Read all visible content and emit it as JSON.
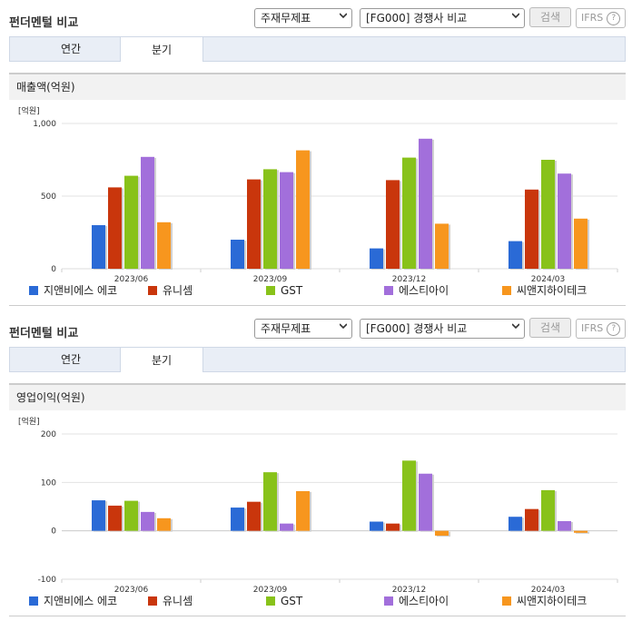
{
  "panels": [
    {
      "title": "펀더멘털 비교",
      "select1": "주재무제표",
      "select2": "[FG000] 경쟁사 비교",
      "search_label": "검색",
      "ifrs_label": "IFRS",
      "help_glyph": "?",
      "tabs": [
        {
          "label": "연간"
        },
        {
          "label": "분기"
        }
      ],
      "active_tab": 1,
      "chart_title": "매출액(억원)"
    },
    {
      "title": "펀더멘털 비교",
      "select1": "주재무제표",
      "select2": "[FG000] 경쟁사 비교",
      "search_label": "검색",
      "ifrs_label": "IFRS",
      "help_glyph": "?",
      "tabs": [
        {
          "label": "연간"
        },
        {
          "label": "분기"
        }
      ],
      "active_tab": 1,
      "chart_title": "영업이익(억원)"
    }
  ],
  "colors": [
    "#2a6ad6",
    "#c9360c",
    "#88c21a",
    "#a26fdb",
    "#f7961e"
  ],
  "chart_data": [
    {
      "type": "bar",
      "unit_label": "[억원]",
      "categories": [
        "2023/06",
        "2023/09",
        "2023/12",
        "2024/03"
      ],
      "series": [
        {
          "name": "지앤비에스 에코",
          "values": [
            300,
            200,
            140,
            190
          ]
        },
        {
          "name": "유니셈",
          "values": [
            560,
            615,
            610,
            545
          ]
        },
        {
          "name": "GST",
          "values": [
            640,
            685,
            765,
            750
          ]
        },
        {
          "name": "에스티아이",
          "values": [
            770,
            665,
            895,
            655
          ]
        },
        {
          "name": "씨앤지하이테크",
          "values": [
            320,
            815,
            310,
            345
          ]
        }
      ],
      "yticks": [
        "1,000",
        "500",
        "0"
      ],
      "ylim": [
        0,
        1000
      ],
      "grid": true,
      "legend": "bottom"
    },
    {
      "type": "bar",
      "unit_label": "[억원]",
      "categories": [
        "2023/06",
        "2023/09",
        "2023/12",
        "2024/03"
      ],
      "series": [
        {
          "name": "지앤비에스 에코",
          "values": [
            63,
            48,
            19,
            29
          ]
        },
        {
          "name": "유니셈",
          "values": [
            52,
            60,
            15,
            45
          ]
        },
        {
          "name": "GST",
          "values": [
            62,
            121,
            145,
            84
          ]
        },
        {
          "name": "에스티아이",
          "values": [
            39,
            15,
            118,
            20
          ]
        },
        {
          "name": "씨앤지하이테크",
          "values": [
            26,
            82,
            -10,
            -4
          ]
        }
      ],
      "yticks": [
        "200",
        "100",
        "0",
        "-100"
      ],
      "ylim": [
        -100,
        200
      ],
      "grid": true,
      "legend": "bottom"
    }
  ]
}
